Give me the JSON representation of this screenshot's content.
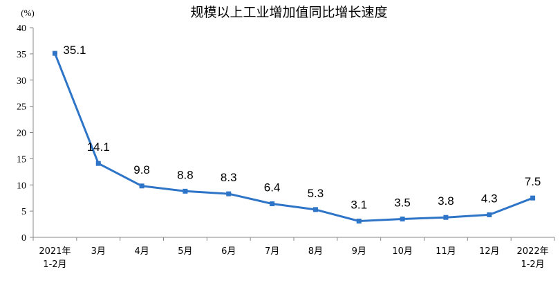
{
  "chart_data": {
    "type": "line",
    "title": "规模以上工业增加值同比增长速度",
    "unit_label": "(%)",
    "ylim": [
      0,
      40
    ],
    "yticks": [
      "0",
      "5",
      "10",
      "15",
      "20",
      "25",
      "30",
      "35",
      "40"
    ],
    "categories": [
      [
        "2021年",
        "1-2月"
      ],
      [
        "3月"
      ],
      [
        "4月"
      ],
      [
        "5月"
      ],
      [
        "6月"
      ],
      [
        "7月"
      ],
      [
        "8月"
      ],
      [
        "9月"
      ],
      [
        "10月"
      ],
      [
        "11月"
      ],
      [
        "12月"
      ],
      [
        "2022年",
        "1-2月"
      ]
    ],
    "values": [
      35.1,
      14.1,
      9.8,
      8.8,
      8.3,
      6.4,
      5.3,
      3.1,
      3.5,
      3.8,
      4.3,
      7.5
    ],
    "data_labels": [
      "35.1",
      "14.1",
      "9.8",
      "8.8",
      "8.3",
      "6.4",
      "5.3",
      "3.1",
      "3.5",
      "3.8",
      "4.3",
      "7.5"
    ],
    "line_color": "#2E75C8",
    "grid": false,
    "legend": "none"
  }
}
